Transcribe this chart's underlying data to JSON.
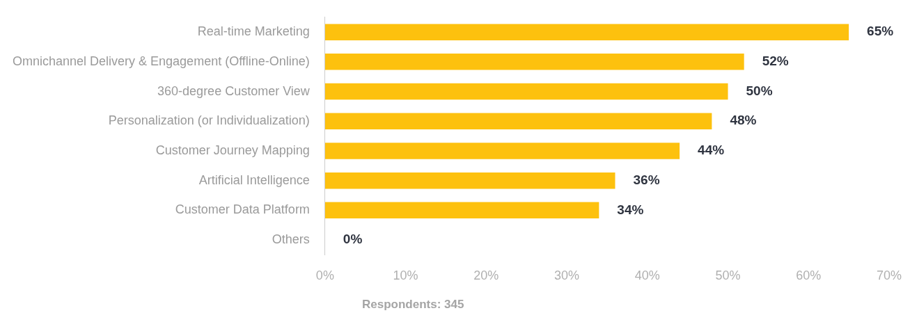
{
  "chart_data": {
    "type": "bar",
    "orientation": "horizontal",
    "categories": [
      "Real-time Marketing",
      "Omnichannel Delivery & Engagement (Offline-Online)",
      "360-degree Customer View",
      "Personalization (or Individualization)",
      "Customer Journey Mapping",
      "Artificial Intelligence",
      "Customer Data Platform",
      "Others"
    ],
    "values": [
      65,
      52,
      50,
      48,
      44,
      36,
      34,
      0
    ],
    "color": "#fdc10e",
    "xlim": [
      0,
      70
    ],
    "xticks": [
      {
        "value": 0,
        "label": "0%"
      },
      {
        "value": 10,
        "label": "10%"
      },
      {
        "value": 20,
        "label": "20%"
      },
      {
        "value": 30,
        "label": "30%"
      },
      {
        "value": 40,
        "label": "40%"
      },
      {
        "value": 50,
        "label": "50%"
      },
      {
        "value": 60,
        "label": "60%"
      },
      {
        "value": 70,
        "label": "70%"
      }
    ],
    "value_labels": [
      "65%",
      "52%",
      "50%",
      "48%",
      "44%",
      "36%",
      "34%",
      "0%"
    ],
    "annotations": [
      "Respondents: 345"
    ]
  }
}
